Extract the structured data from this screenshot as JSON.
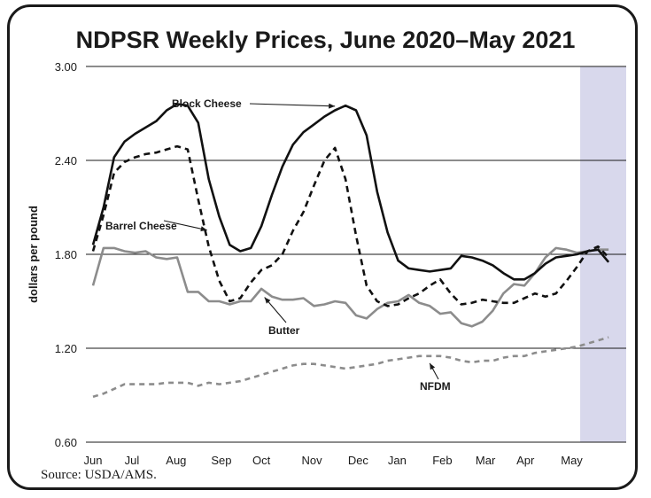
{
  "title": "NDPSR Weekly Prices, June 2020–May 2021",
  "source": "Source: USDA/AMS.",
  "chart_data": {
    "type": "line",
    "title": "NDPSR Weekly Prices, June 2020–May 2021",
    "ylabel": "dollars per pound",
    "xlabel": "",
    "ylim": [
      0.6,
      3.0
    ],
    "yticks": [
      "0.60",
      "1.20",
      "1.80",
      "2.40",
      "3.00"
    ],
    "xlim": [
      0,
      50
    ],
    "month_labels": [
      "Jun",
      "Jul",
      "Aug",
      "Sep",
      "Oct",
      "Nov",
      "Dec",
      "Jan",
      "Feb",
      "Mar",
      "Apr",
      "May"
    ],
    "month_positions": [
      0,
      3.7,
      7.9,
      12.2,
      16.0,
      20.8,
      25.2,
      28.9,
      33.2,
      37.3,
      41.1,
      45.5
    ],
    "grid": "horizontal",
    "shaded_region": {
      "x_start": 46.3,
      "x_end": 50,
      "color": "#d8d8ec"
    },
    "series": [
      {
        "name": "Block Cheese",
        "style": "solid",
        "color": "#111111",
        "x": [
          0,
          1,
          2,
          3,
          4,
          5,
          6,
          7,
          8,
          9,
          10,
          11,
          12,
          13,
          14,
          15,
          16,
          17,
          18,
          19,
          20,
          21,
          22,
          23,
          24,
          25,
          26,
          27,
          28,
          29,
          30,
          31,
          32,
          33,
          34,
          35,
          36,
          37,
          38,
          39,
          40,
          41,
          42,
          43,
          44,
          45,
          46,
          47,
          48,
          49
        ],
        "values": [
          1.86,
          2.1,
          2.42,
          2.52,
          2.57,
          2.61,
          2.65,
          2.72,
          2.76,
          2.75,
          2.64,
          2.28,
          2.04,
          1.86,
          1.82,
          1.84,
          1.98,
          2.18,
          2.36,
          2.5,
          2.58,
          2.63,
          2.68,
          2.72,
          2.75,
          2.72,
          2.56,
          2.2,
          1.94,
          1.76,
          1.71,
          1.7,
          1.69,
          1.7,
          1.71,
          1.79,
          1.78,
          1.76,
          1.73,
          1.68,
          1.64,
          1.64,
          1.68,
          1.74,
          1.78,
          1.79,
          1.8,
          1.82,
          1.83,
          1.75
        ]
      },
      {
        "name": "Barrel Cheese",
        "style": "dashed",
        "color": "#111111",
        "x": [
          0,
          1,
          2,
          3,
          4,
          5,
          6,
          7,
          8,
          9,
          10,
          11,
          12,
          13,
          14,
          15,
          16,
          17,
          18,
          19,
          20,
          21,
          22,
          23,
          24,
          25,
          26,
          27,
          28,
          29,
          30,
          31,
          32,
          33,
          34,
          35,
          36,
          37,
          38,
          39,
          40,
          41,
          42,
          43,
          44,
          45,
          46,
          47,
          48,
          49
        ],
        "values": [
          1.82,
          2.05,
          2.32,
          2.39,
          2.42,
          2.44,
          2.45,
          2.47,
          2.49,
          2.47,
          2.15,
          1.85,
          1.63,
          1.5,
          1.52,
          1.62,
          1.7,
          1.73,
          1.8,
          1.95,
          2.07,
          2.24,
          2.4,
          2.48,
          2.28,
          1.92,
          1.6,
          1.5,
          1.47,
          1.48,
          1.52,
          1.55,
          1.6,
          1.64,
          1.55,
          1.48,
          1.49,
          1.51,
          1.5,
          1.49,
          1.49,
          1.52,
          1.55,
          1.53,
          1.55,
          1.63,
          1.72,
          1.82,
          1.85,
          1.78
        ]
      },
      {
        "name": "Butter",
        "style": "solid",
        "color": "#8c8c8c",
        "x": [
          0,
          1,
          2,
          3,
          4,
          5,
          6,
          7,
          8,
          9,
          10,
          11,
          12,
          13,
          14,
          15,
          16,
          17,
          18,
          19,
          20,
          21,
          22,
          23,
          24,
          25,
          26,
          27,
          28,
          29,
          30,
          31,
          32,
          33,
          34,
          35,
          36,
          37,
          38,
          39,
          40,
          41,
          42,
          43,
          44,
          45,
          46,
          47,
          48,
          49
        ],
        "values": [
          1.6,
          1.84,
          1.84,
          1.82,
          1.81,
          1.82,
          1.78,
          1.77,
          1.78,
          1.56,
          1.56,
          1.5,
          1.5,
          1.48,
          1.5,
          1.5,
          1.58,
          1.53,
          1.51,
          1.51,
          1.52,
          1.47,
          1.48,
          1.5,
          1.49,
          1.41,
          1.39,
          1.45,
          1.49,
          1.5,
          1.54,
          1.49,
          1.47,
          1.42,
          1.43,
          1.36,
          1.34,
          1.37,
          1.44,
          1.55,
          1.61,
          1.6,
          1.68,
          1.78,
          1.84,
          1.83,
          1.81,
          1.82,
          1.83,
          1.83
        ]
      },
      {
        "name": "NFDM",
        "style": "dashed",
        "color": "#8c8c8c",
        "x": [
          0,
          1,
          2,
          3,
          4,
          5,
          6,
          7,
          8,
          9,
          10,
          11,
          12,
          13,
          14,
          15,
          16,
          17,
          18,
          19,
          20,
          21,
          22,
          23,
          24,
          25,
          26,
          27,
          28,
          29,
          30,
          31,
          32,
          33,
          34,
          35,
          36,
          37,
          38,
          39,
          40,
          41,
          42,
          43,
          44,
          45,
          46,
          47,
          48,
          49
        ],
        "values": [
          0.89,
          0.91,
          0.94,
          0.97,
          0.97,
          0.97,
          0.97,
          0.98,
          0.98,
          0.98,
          0.96,
          0.98,
          0.97,
          0.98,
          0.99,
          1.01,
          1.03,
          1.05,
          1.07,
          1.09,
          1.1,
          1.1,
          1.09,
          1.08,
          1.07,
          1.08,
          1.09,
          1.1,
          1.12,
          1.13,
          1.14,
          1.15,
          1.15,
          1.15,
          1.14,
          1.12,
          1.11,
          1.12,
          1.12,
          1.14,
          1.15,
          1.15,
          1.17,
          1.18,
          1.19,
          1.2,
          1.21,
          1.23,
          1.25,
          1.27
        ]
      }
    ],
    "annotations": [
      {
        "text": "Block Cheese",
        "series": "Block Cheese"
      },
      {
        "text": "Barrel Cheese",
        "series": "Barrel Cheese"
      },
      {
        "text": "Butter",
        "series": "Butter"
      },
      {
        "text": "NFDM",
        "series": "NFDM"
      }
    ]
  }
}
